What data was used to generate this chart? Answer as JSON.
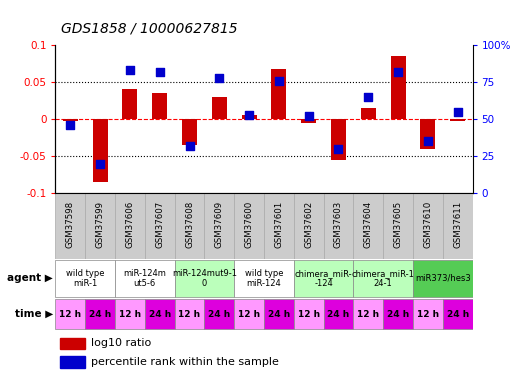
{
  "title": "GDS1858 / 10000627815",
  "samples": [
    "GSM37598",
    "GSM37599",
    "GSM37606",
    "GSM37607",
    "GSM37608",
    "GSM37609",
    "GSM37600",
    "GSM37601",
    "GSM37602",
    "GSM37603",
    "GSM37604",
    "GSM37605",
    "GSM37610",
    "GSM37611"
  ],
  "log10_ratio": [
    -0.002,
    -0.085,
    0.04,
    0.035,
    -0.035,
    0.03,
    0.005,
    0.068,
    -0.005,
    -0.055,
    0.015,
    0.085,
    -0.04,
    -0.003
  ],
  "percentile": [
    46,
    20,
    83,
    82,
    32,
    78,
    53,
    76,
    52,
    30,
    65,
    82,
    35,
    55
  ],
  "ylim_left": [
    -0.1,
    0.1
  ],
  "ylim_right": [
    0,
    100
  ],
  "agent_groups": [
    {
      "label": "wild type\nmiR-1",
      "cols": [
        0,
        1
      ],
      "color": "#ffffff"
    },
    {
      "label": "miR-124m\nut5-6",
      "cols": [
        2,
        3
      ],
      "color": "#ffffff"
    },
    {
      "label": "miR-124mut9-1\n0",
      "cols": [
        4,
        5
      ],
      "color": "#bbffbb"
    },
    {
      "label": "wild type\nmiR-124",
      "cols": [
        6,
        7
      ],
      "color": "#ffffff"
    },
    {
      "label": "chimera_miR-\n-124",
      "cols": [
        8,
        9
      ],
      "color": "#bbffbb"
    },
    {
      "label": "chimera_miR-1\n24-1",
      "cols": [
        10,
        11
      ],
      "color": "#bbffbb"
    },
    {
      "label": "miR373/hes3",
      "cols": [
        12,
        13
      ],
      "color": "#55cc55"
    }
  ],
  "time_labels": [
    "12 h",
    "24 h",
    "12 h",
    "24 h",
    "12 h",
    "24 h",
    "12 h",
    "24 h",
    "12 h",
    "24 h",
    "12 h",
    "24 h",
    "12 h",
    "24 h"
  ],
  "bar_color": "#cc0000",
  "dot_color": "#0000cc",
  "bar_width": 0.5,
  "dot_size": 35,
  "background": "#ffffff",
  "sample_bg": "#cccccc",
  "time_color_light": "#ff99ff",
  "time_color_dark": "#dd00dd"
}
